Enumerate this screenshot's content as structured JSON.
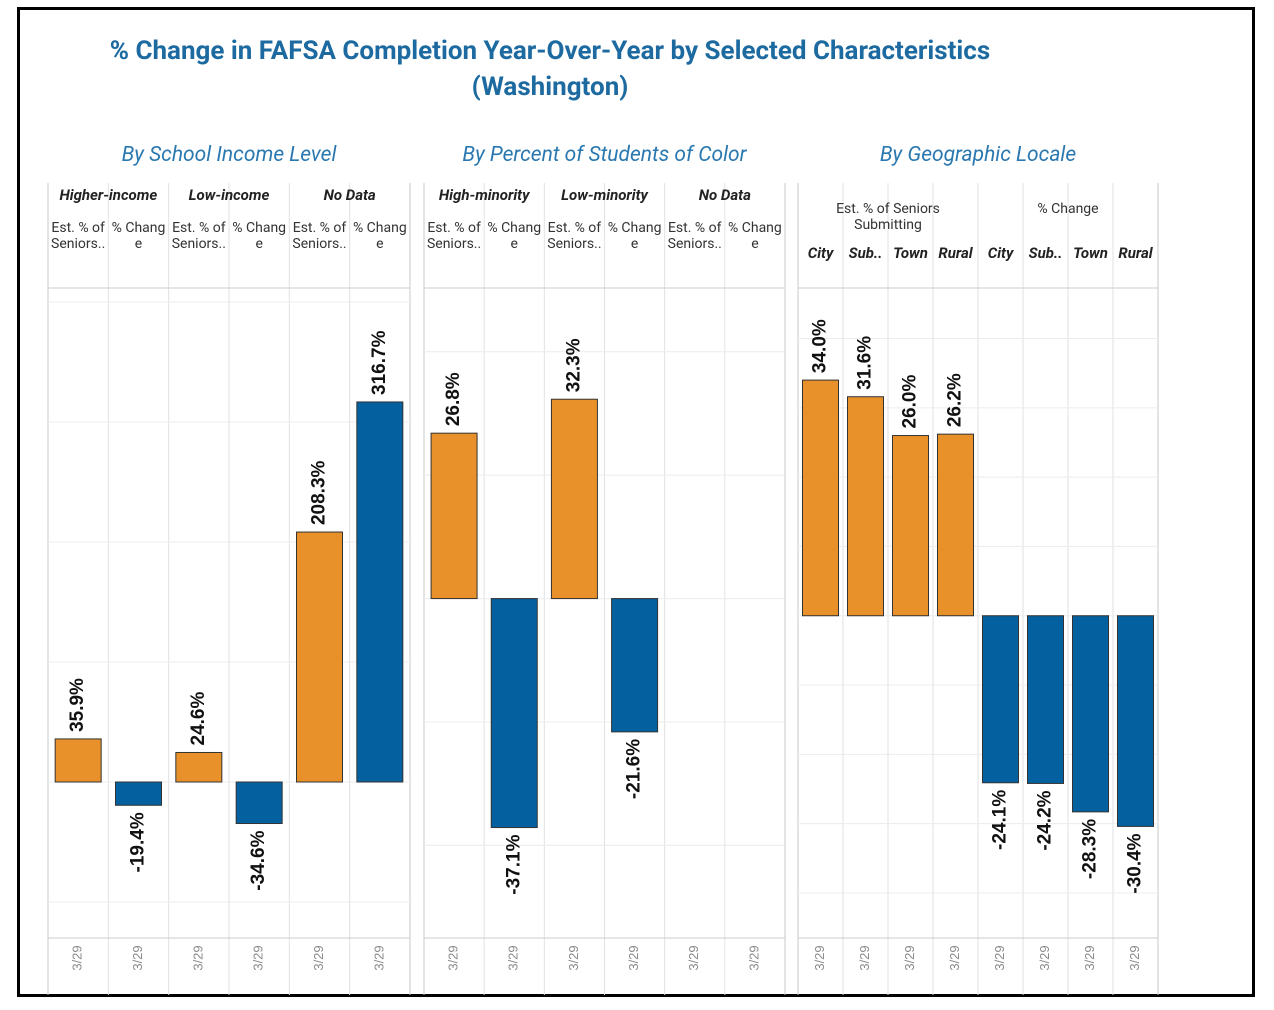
{
  "title": [
    "% Change in FAFSA Completion Year-Over-Year by Selected Characteristics",
    "(Washington)"
  ],
  "chart_data": [
    {
      "type": "bar",
      "title": "By School Income Level",
      "nest": "groups-outer",
      "x_label": "3/29",
      "groups": [
        "Higher-income",
        "Low-income",
        "No Data"
      ],
      "series": [
        {
          "name": "Est. % of Seniors..",
          "color": "#e8912a",
          "values": [
            35.9,
            24.6,
            208.3
          ],
          "value_labels": [
            "35.9%",
            "24.6%",
            "208.3%"
          ]
        },
        {
          "name": "% Change",
          "color": "#04609e",
          "values": [
            -19.4,
            -34.6,
            316.7
          ],
          "value_labels": [
            "-19.4%",
            "-34.6%",
            "316.7%"
          ]
        }
      ],
      "ylim": [
        -130,
        410
      ],
      "yticks": [
        -100,
        0,
        100,
        200,
        300,
        400
      ],
      "grid": true
    },
    {
      "type": "bar",
      "title": "By Percent of Students of Color",
      "nest": "groups-outer",
      "x_label": "3/29",
      "groups": [
        "High-minority",
        "Low-minority",
        "No Data"
      ],
      "series": [
        {
          "name": "Est. % of Seniors..",
          "color": "#e8912a",
          "values": [
            26.8,
            32.3,
            null
          ],
          "value_labels": [
            "26.8%",
            "32.3%",
            null
          ]
        },
        {
          "name": "% Change",
          "color": "#04609e",
          "values": [
            -37.1,
            -21.6,
            null
          ],
          "value_labels": [
            "-37.1%",
            "-21.6%",
            null
          ]
        }
      ],
      "ylim": [
        -55,
        50
      ],
      "yticks": [
        -40,
        -20,
        0,
        20,
        40
      ],
      "grid": true
    },
    {
      "type": "bar",
      "title": "By Geographic Locale",
      "nest": "series-outer",
      "x_label": "3/29",
      "groups": [
        "City",
        "Sub..",
        "Town",
        "Rural"
      ],
      "series": [
        {
          "name": "Est. % of Seniors Submitting",
          "color": "#e8912a",
          "values": [
            34.0,
            31.6,
            26.0,
            26.2
          ],
          "value_labels": [
            "34.0%",
            "31.6%",
            "26.0%",
            "26.2%"
          ]
        },
        {
          "name": "% Change",
          "color": "#04609e",
          "values": [
            -24.1,
            -24.2,
            -28.3,
            -30.4
          ],
          "value_labels": [
            "-24.1%",
            "-24.2%",
            "-28.3%",
            "-30.4%"
          ]
        }
      ],
      "ylim": [
        -46.5,
        47
      ],
      "yticks": [
        -40,
        -30,
        -20,
        -10,
        0,
        10,
        20,
        30,
        40
      ],
      "grid": true
    }
  ]
}
